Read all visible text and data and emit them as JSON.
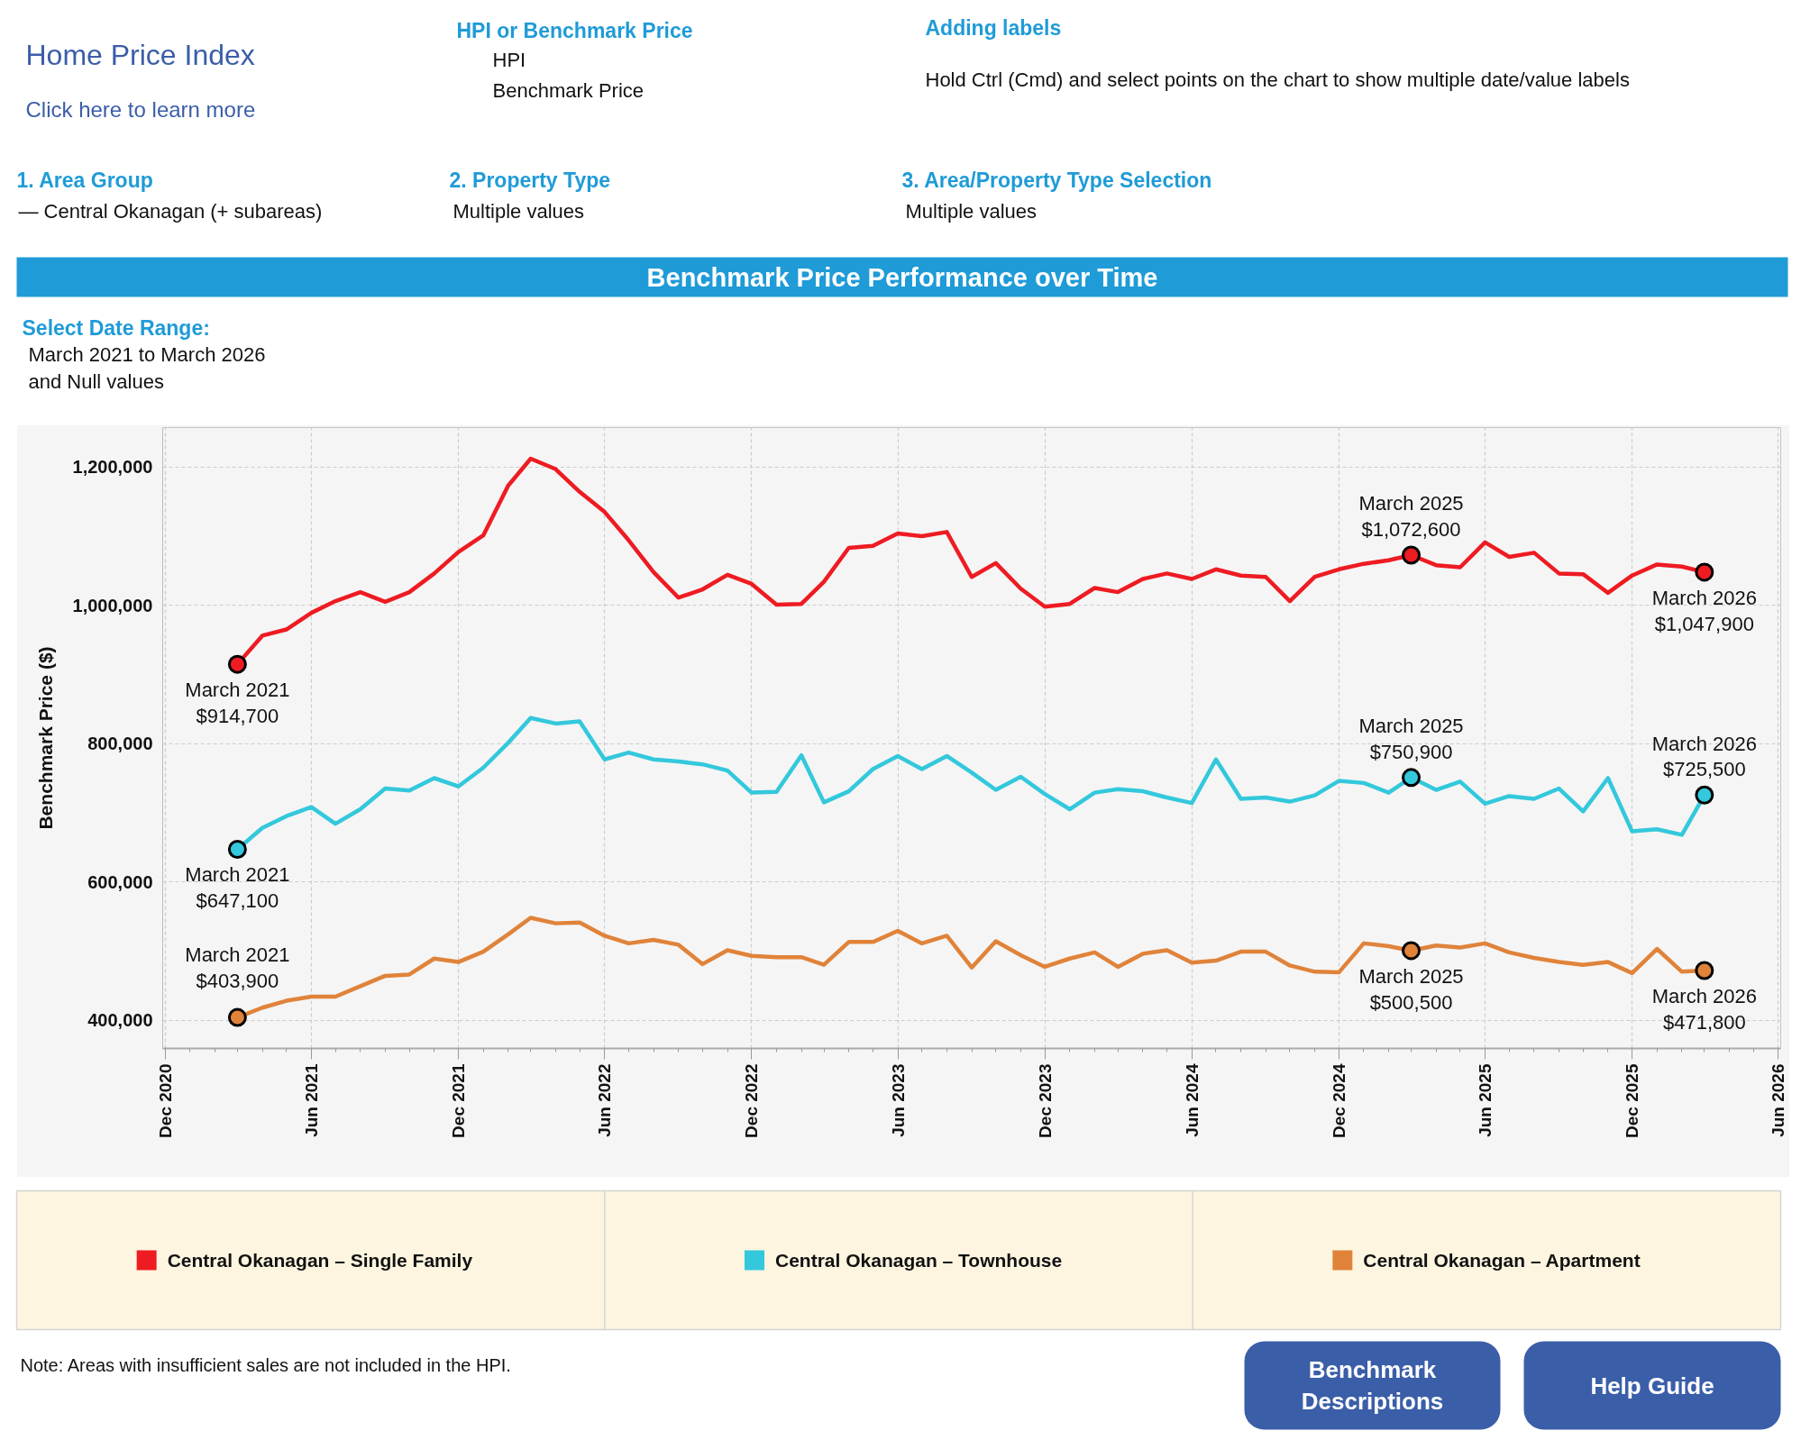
{
  "chart_data": {
    "type": "line",
    "title": "Benchmark Price Performance over Time",
    "ylabel": "Benchmark Price ($)",
    "x": [
      "2021-03",
      "2021-04",
      "2021-05",
      "2021-06",
      "2021-07",
      "2021-08",
      "2021-09",
      "2021-10",
      "2021-11",
      "2021-12",
      "2022-01",
      "2022-02",
      "2022-03",
      "2022-04",
      "2022-05",
      "2022-06",
      "2022-07",
      "2022-08",
      "2022-09",
      "2022-10",
      "2022-11",
      "2022-12",
      "2023-01",
      "2023-02",
      "2023-03",
      "2023-04",
      "2023-05",
      "2023-06",
      "2023-07",
      "2023-08",
      "2023-09",
      "2023-10",
      "2023-11",
      "2023-12",
      "2024-01",
      "2024-02",
      "2024-03",
      "2024-04",
      "2024-05",
      "2024-06",
      "2024-07",
      "2024-08",
      "2024-09",
      "2024-10",
      "2024-11",
      "2024-12",
      "2025-01",
      "2025-02",
      "2025-03",
      "2025-04",
      "2025-05",
      "2025-06",
      "2025-07",
      "2025-08",
      "2025-09",
      "2025-10",
      "2025-11",
      "2025-12",
      "2026-01",
      "2026-02",
      "2026-03"
    ],
    "series": [
      {
        "name": "Central Okanagan – Single Family",
        "color": "#ee1b22",
        "values": [
          914700,
          956000,
          965000,
          989000,
          1006000,
          1019000,
          1005000,
          1019000,
          1046000,
          1077000,
          1101000,
          1173000,
          1212000,
          1197000,
          1164000,
          1135000,
          1094000,
          1048000,
          1011000,
          1023000,
          1044000,
          1031000,
          1001000,
          1002000,
          1034000,
          1083000,
          1086000,
          1104000,
          1100000,
          1106000,
          1041000,
          1061000,
          1024000,
          998000,
          1002000,
          1025000,
          1019000,
          1038000,
          1046000,
          1038000,
          1052000,
          1043000,
          1041000,
          1006000,
          1041000,
          1052000,
          1060000,
          1065000,
          1072600,
          1058000,
          1055000,
          1091000,
          1070000,
          1076000,
          1046000,
          1045000,
          1018000,
          1043000,
          1059000,
          1056000,
          1047900
        ]
      },
      {
        "name": "Central Okanagan – Townhouse",
        "color": "#33c8dc",
        "values": [
          647100,
          678000,
          695000,
          708000,
          684000,
          705000,
          735000,
          732000,
          750000,
          738000,
          765000,
          801000,
          837000,
          829000,
          832000,
          777000,
          787000,
          777000,
          774000,
          770000,
          761000,
          729000,
          730000,
          783000,
          715000,
          731000,
          763000,
          782000,
          763000,
          782000,
          758000,
          733000,
          752000,
          727000,
          705000,
          729000,
          734000,
          731000,
          722000,
          714000,
          777000,
          720000,
          722000,
          716000,
          725000,
          746000,
          743000,
          729000,
          750900,
          733000,
          745000,
          713000,
          724000,
          720000,
          735000,
          702000,
          750000,
          673000,
          676000,
          668000,
          725500
        ]
      },
      {
        "name": "Central Okanagan – Apartment",
        "color": "#e0833a",
        "values": [
          403900,
          418000,
          428000,
          434000,
          434000,
          449000,
          464000,
          466000,
          489000,
          484000,
          499000,
          524000,
          548000,
          540000,
          541000,
          522000,
          511000,
          516000,
          509000,
          481000,
          501000,
          493000,
          491000,
          491000,
          480000,
          513000,
          513000,
          529000,
          511000,
          522000,
          476000,
          514000,
          494000,
          477000,
          489000,
          498000,
          477000,
          496000,
          501000,
          483000,
          486000,
          499000,
          499000,
          479000,
          470000,
          469000,
          511000,
          507000,
          500500,
          508000,
          505000,
          511000,
          498000,
          490000,
          484000,
          480000,
          484000,
          468000,
          503000,
          470000,
          471800
        ]
      }
    ],
    "xlim": [
      "2020-11-28",
      "2026-06-04"
    ],
    "xticks": [
      {
        "value": "2020-12",
        "label": "Dec 2020"
      },
      {
        "value": "2021-06",
        "label": "Jun 2021"
      },
      {
        "value": "2021-12",
        "label": "Dec 2021"
      },
      {
        "value": "2022-06",
        "label": "Jun 2022"
      },
      {
        "value": "2022-12",
        "label": "Dec 2022"
      },
      {
        "value": "2023-06",
        "label": "Jun 2023"
      },
      {
        "value": "2023-12",
        "label": "Dec 2023"
      },
      {
        "value": "2024-06",
        "label": "Jun 2024"
      },
      {
        "value": "2024-12",
        "label": "Dec 2024"
      },
      {
        "value": "2025-06",
        "label": "Jun 2025"
      },
      {
        "value": "2025-12",
        "label": "Dec 2025"
      },
      {
        "value": "2026-06",
        "label": "Jun 2026"
      }
    ],
    "ylim": [
      359000,
      1257000
    ],
    "yticks": [
      {
        "value": 400000,
        "label": "400,000"
      },
      {
        "value": 600000,
        "label": "600,000"
      },
      {
        "value": 800000,
        "label": "800,000"
      },
      {
        "value": 1000000,
        "label": "1,000,000"
      },
      {
        "value": 1200000,
        "label": "1,200,000"
      }
    ],
    "grid": true,
    "legend": "bottom",
    "annotations": [
      "Home Price Index",
      "Click here to learn more",
      "HPI or Benchmark Price",
      "HPI",
      "Benchmark Price",
      "Adding labels",
      "Hold Ctrl (Cmd) and select points on the chart to show multiple date/value labels",
      "1. Area Group",
      "— Central Okanagan (+ subareas)",
      "2. Property Type",
      "Multiple values",
      "3. Area/Property Type Selection",
      "Multiple values",
      "Select Date Range:",
      "March 2021 to March 2026\nand Null values",
      "Note: Areas with insufficient sales are not included in the HPI.",
      "Benchmark\nDescriptions",
      "Help Guide",
      {
        "text": "March 2021\n$914,700",
        "x": "2021-03",
        "y": 914700
      },
      {
        "text": "March 2021\n$647,100",
        "x": "2021-03",
        "y": 647100
      },
      {
        "text": "March 2021\n$403,900",
        "x": "2021-03",
        "y": 403900
      },
      {
        "text": "March 2025\n$1,072,600",
        "x": "2025-03",
        "y": 1072600
      },
      {
        "text": "March 2025\n$750,900",
        "x": "2025-03",
        "y": 750900
      },
      {
        "text": "March 2025\n$500,500",
        "x": "2025-03",
        "y": 500500
      },
      {
        "text": "March 2026\n$1,047,900",
        "x": "2026-03",
        "y": 1047900
      },
      {
        "text": "March 2026\n$725,500",
        "x": "2026-03",
        "y": 725500
      },
      {
        "text": "March 2026\n$471,800",
        "x": "2026-03",
        "y": 471800
      }
    ]
  }
}
